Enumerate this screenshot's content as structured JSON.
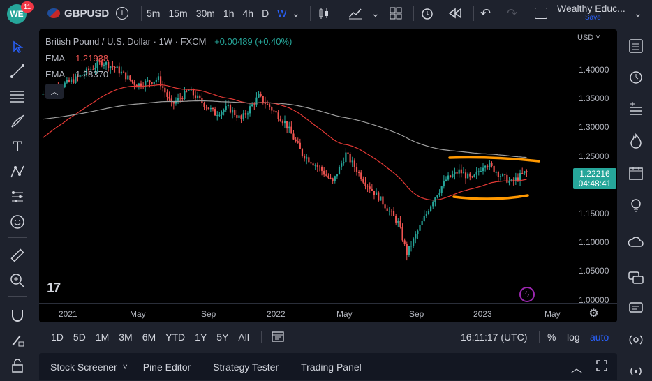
{
  "header": {
    "logo_text": "WE",
    "notifications": "11",
    "symbol": "GBPUSD",
    "intervals": [
      "5m",
      "15m",
      "30m",
      "1h",
      "4h",
      "D",
      "W"
    ],
    "active_interval": "W",
    "layout_name": "Wealthy Educ...",
    "layout_sub": "Save"
  },
  "chart": {
    "title": "British Pound / U.S. Dollar · 1W · FXCM",
    "change": "+0.00489 (+0.40%)",
    "ema1_label": "EMA",
    "ema1_value": "1.21938",
    "ema2_label": "EMA",
    "ema2_value": "1.28370",
    "currency": "USD",
    "last_price": "1.22216",
    "countdown": "04:48:41",
    "price_ticks": [
      "1.40000",
      "1.35000",
      "1.30000",
      "1.25000",
      "1.20000",
      "1.15000",
      "1.10000",
      "1.05000",
      "1.00000"
    ],
    "time_ticks": [
      "2021",
      "May",
      "Sep",
      "2022",
      "May",
      "Sep",
      "2023",
      "May"
    ],
    "tv_logo": "17"
  },
  "bottombar": {
    "ranges": [
      "1D",
      "5D",
      "1M",
      "3M",
      "6M",
      "YTD",
      "1Y",
      "5Y",
      "All"
    ],
    "clock": "16:11:17 (UTC)",
    "percent": "%",
    "log": "log",
    "auto": "auto"
  },
  "panels": [
    "Stock Screener",
    "Pine Editor",
    "Strategy Tester",
    "Trading Panel"
  ],
  "colors": {
    "up": "#26a69a",
    "down": "#ef5350",
    "ema_fast": "#e53935",
    "ema_slow": "#9e9e9e",
    "annotation": "#ff9800",
    "accent": "#2962ff"
  }
}
